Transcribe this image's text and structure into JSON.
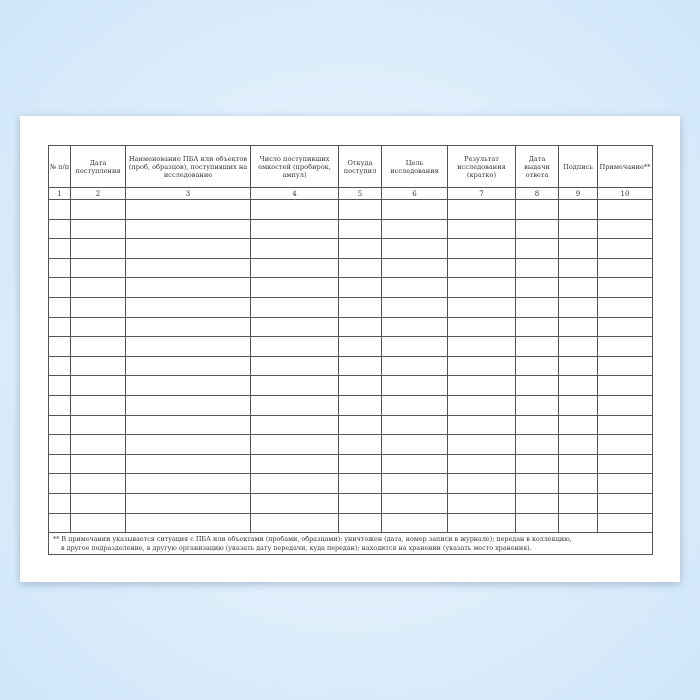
{
  "table": {
    "headers": [
      "№ п/п",
      "Дата поступления",
      "Наименование ПБА или объектов (проб, образцов), поступивших на исследование",
      "Число поступивших емкостей (пробирок, ампул)",
      "Откуда поступил",
      "Цель исследования",
      "Результат исследования (кратко)",
      "Дата выдачи ответа",
      "Подпись",
      "Примечание**"
    ],
    "column_numbers": [
      "1",
      "2",
      "3",
      "4",
      "5",
      "6",
      "7",
      "8",
      "9",
      "10"
    ],
    "empty_rows": 17
  },
  "footnote": {
    "line1": "** В примечании указывается ситуация с ПБА или объектами (пробами, образцами): уничтожен (дата, номер записи в журнале); передан в коллекцию,",
    "line2": "в другое подразделение, в другую организацию (указать дату передачи, куда передан); находится на хранении (указать место хранения)."
  }
}
